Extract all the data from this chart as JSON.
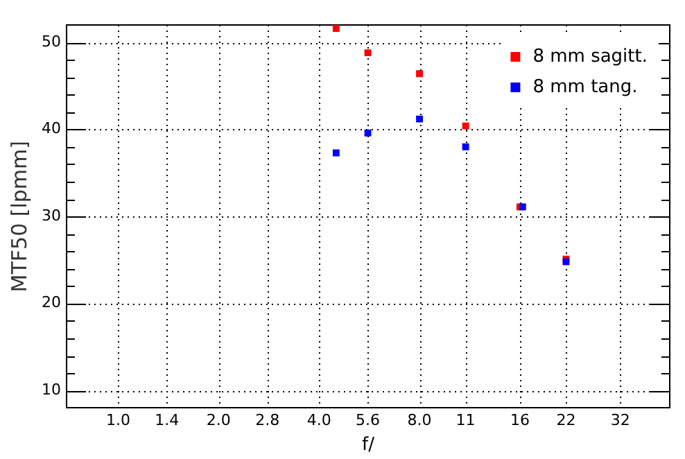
{
  "chart_data": {
    "type": "scatter",
    "xlabel": "f/",
    "ylabel": "MTF50 [lpmm]",
    "log": "x",
    "xlim": [
      0.71,
      45
    ],
    "xticks": [
      {
        "value": 1,
        "label": "1.0"
      },
      1.4,
      {
        "value": 2,
        "label": "2.0"
      },
      2.8,
      {
        "value": 4,
        "label": "4.0"
      },
      5.6,
      {
        "value": 8,
        "label": "8.0"
      },
      11,
      16,
      22,
      32
    ],
    "ylim": [
      8,
      52
    ],
    "yticks": [
      10,
      {
        "value": 12,
        "label": null
      },
      {
        "value": 14,
        "label": null
      },
      {
        "value": 16,
        "label": null
      },
      {
        "value": 18,
        "label": null
      },
      20,
      {
        "value": 22,
        "label": null
      },
      {
        "value": 24,
        "label": null
      },
      {
        "value": 26,
        "label": null
      },
      {
        "value": 28,
        "label": null
      },
      30,
      {
        "value": 32,
        "label": null
      },
      {
        "value": 34,
        "label": null
      },
      {
        "value": 36,
        "label": null
      },
      {
        "value": 38,
        "label": null
      },
      40,
      {
        "value": 42,
        "label": null
      },
      {
        "value": 44,
        "label": null
      },
      {
        "value": 46,
        "label": null
      },
      {
        "value": 48,
        "label": null
      },
      50
    ],
    "grid": true,
    "legend": "top right",
    "marker": "square",
    "series": [
      {
        "name": "8 mm sagitt.",
        "color": "#ff0000",
        "x": [
          4.5,
          5.6,
          8,
          11,
          16,
          22
        ],
        "values": [
          51.6,
          48.8,
          46.4,
          40.4,
          31.1,
          25.1
        ]
      },
      {
        "name": "8 mm tang.",
        "color": "#0000ff",
        "x": [
          4.5,
          5.6,
          8,
          11,
          16.3,
          22
        ],
        "values": [
          37.3,
          39.6,
          41.2,
          38.0,
          31.1,
          24.8
        ]
      }
    ]
  }
}
